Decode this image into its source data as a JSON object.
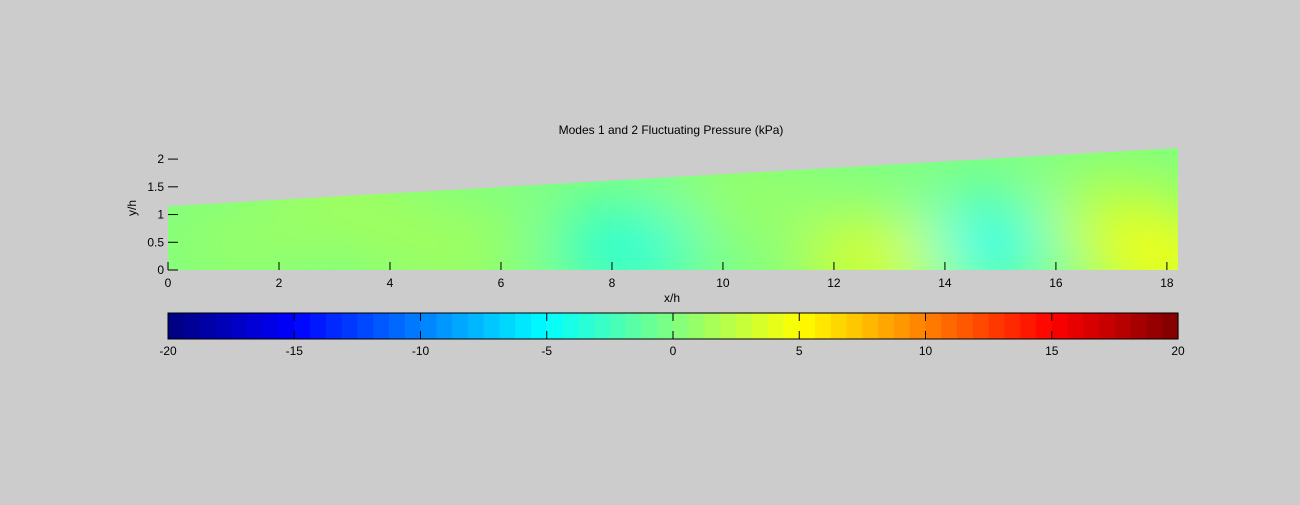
{
  "chart_data": {
    "type": "heatmap",
    "title": "Modes 1 and 2 Fluctuating Pressure (kPa)",
    "xlabel": "x/h",
    "ylabel": "y/h",
    "xlim": [
      0,
      18.2
    ],
    "ylim": [
      0,
      2.2
    ],
    "x_ticks": [
      0,
      2,
      4,
      6,
      8,
      10,
      12,
      14,
      16,
      18
    ],
    "y_ticks": [
      0,
      0.5,
      1,
      1.5,
      2
    ],
    "x_tick_labels": [
      "0",
      "2",
      "4",
      "6",
      "8",
      "10",
      "12",
      "14",
      "16",
      "18"
    ],
    "y_tick_labels": [
      "0",
      "0.5",
      "1",
      "1.5",
      "2"
    ],
    "domain_top_edge": {
      "x": [
        0,
        18.2
      ],
      "y": [
        1.15,
        2.2
      ]
    },
    "field": {
      "background_value": 0,
      "features": [
        {
          "x": 8.3,
          "y": 0.4,
          "value": -4
        },
        {
          "x": 14.6,
          "y": 0.5,
          "value": -5
        },
        {
          "x": 12.7,
          "y": 0.2,
          "value": 4
        },
        {
          "x": 17.1,
          "y": 0.9,
          "value": 3
        },
        {
          "x": 18.0,
          "y": 0.1,
          "value": 5
        },
        {
          "x": 3.1,
          "y": 1.15,
          "value": 1.5
        },
        {
          "x": 5.0,
          "y": 0.4,
          "value": 1.5
        },
        {
          "x": 1.3,
          "y": 0.5,
          "value": 1
        },
        {
          "x": 10.4,
          "y": 1.3,
          "value": 1
        }
      ]
    },
    "colorbar": {
      "orientation": "horizontal",
      "clim": [
        -20,
        20
      ],
      "levels": 64,
      "colormap": "jet",
      "ticks": [
        -20,
        -15,
        -10,
        -5,
        0,
        5,
        10,
        15,
        20
      ],
      "tick_labels": [
        "-20",
        "-15",
        "-10",
        "-5",
        "0",
        "5",
        "10",
        "15",
        "20"
      ]
    },
    "grid": false,
    "background_color": "#cccccc"
  }
}
